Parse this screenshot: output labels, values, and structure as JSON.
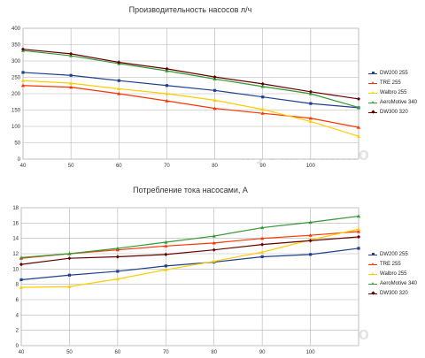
{
  "chart_data": [
    {
      "type": "line",
      "title": "Производительность насосов л/ч",
      "x": [
        40,
        50,
        60,
        70,
        80,
        90,
        100,
        110
      ],
      "xticks": [
        "40",
        "50",
        "60",
        "70",
        "80",
        "90",
        "100",
        ""
      ],
      "ylim": [
        0,
        400
      ],
      "yticks": [
        0,
        50,
        100,
        150,
        200,
        250,
        300,
        350,
        400
      ],
      "grid": true,
      "legend": "right",
      "series": [
        {
          "name": "DW200 255",
          "color": "#1f3f8f",
          "marker": "square",
          "values": [
            265,
            256,
            240,
            225,
            210,
            190,
            170,
            157
          ]
        },
        {
          "name": "TRE 255",
          "color": "#ff3300",
          "marker": "triangle",
          "values": [
            225,
            220,
            200,
            178,
            155,
            140,
            125,
            97
          ]
        },
        {
          "name": "Walbro 255",
          "color": "#ffcc00",
          "marker": "triangle",
          "values": [
            240,
            232,
            215,
            200,
            180,
            152,
            115,
            70
          ]
        },
        {
          "name": "AeroMotive 340",
          "color": "#339933",
          "marker": "triangle",
          "values": [
            332,
            316,
            292,
            270,
            245,
            222,
            200,
            158
          ]
        },
        {
          "name": "DW300 320",
          "color": "#660000",
          "marker": "diamond",
          "values": [
            336,
            322,
            296,
            276,
            251,
            230,
            206,
            184
          ]
        }
      ]
    },
    {
      "type": "line",
      "title": "Потребление тока насосами, А",
      "x": [
        40,
        50,
        60,
        70,
        80,
        90,
        100,
        110
      ],
      "xticks": [
        "40",
        "50",
        "60",
        "70",
        "80",
        "90",
        "100",
        ""
      ],
      "ylim": [
        0,
        18
      ],
      "yticks": [
        0,
        2,
        4,
        6,
        8,
        10,
        12,
        14,
        16,
        18
      ],
      "grid": true,
      "legend": "right",
      "series": [
        {
          "name": "DW200 255",
          "color": "#1f3f8f",
          "marker": "square",
          "values": [
            8.6,
            9.2,
            9.7,
            10.4,
            10.9,
            11.6,
            11.9,
            12.7
          ]
        },
        {
          "name": "TRE 255",
          "color": "#ff3300",
          "marker": "triangle",
          "values": [
            11.4,
            12.0,
            12.5,
            13.0,
            13.4,
            14.0,
            14.4,
            14.9
          ]
        },
        {
          "name": "Walbro 255",
          "color": "#ffcc00",
          "marker": "triangle",
          "values": [
            7.6,
            7.7,
            8.7,
            9.9,
            11.0,
            12.2,
            13.8,
            15.2
          ]
        },
        {
          "name": "AeroMotive 340",
          "color": "#339933",
          "marker": "triangle",
          "values": [
            11.5,
            12.0,
            12.7,
            13.5,
            14.3,
            15.4,
            16.1,
            16.9
          ]
        },
        {
          "name": "DW300 320",
          "color": "#660000",
          "marker": "diamond",
          "values": [
            10.6,
            11.4,
            11.6,
            11.9,
            12.5,
            13.2,
            13.7,
            14.2
          ]
        }
      ]
    }
  ],
  "watermark": "MySubaru.Info"
}
